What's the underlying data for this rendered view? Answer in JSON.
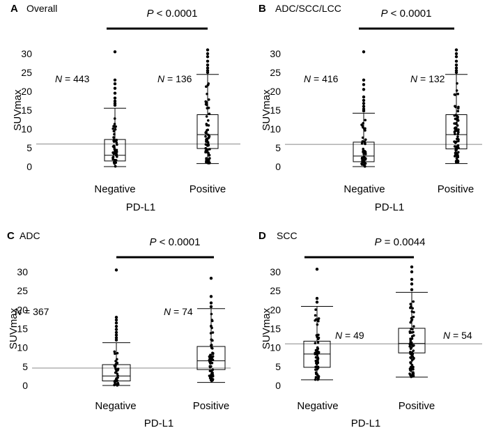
{
  "chart_data": [
    {
      "type": "box",
      "letter": "A",
      "title": "Overall",
      "pvalue": {
        "prefix": "P",
        "text": " < 0.0001"
      },
      "categories": [
        "Negative",
        "Positive"
      ],
      "xlabel": "PD-L1",
      "ylabel": "SUVmax",
      "ylim": [
        0,
        31
      ],
      "yticks": [
        0,
        5,
        10,
        15,
        20,
        25,
        30
      ],
      "cutoff": 6.0,
      "series": [
        {
          "name": "Negative",
          "n_label": "443",
          "whisker_low": 0,
          "q1": 1.5,
          "median": 3.0,
          "q3": 7.2,
          "whisker_high": 15.5,
          "points": [
            16.3,
            16.8,
            17.4,
            18.2,
            19.5,
            20.8,
            22.0,
            23.0,
            30.5
          ]
        },
        {
          "name": "Positive",
          "n_label": "136",
          "whisker_low": 0.8,
          "q1": 4.8,
          "median": 8.5,
          "q3": 13.8,
          "whisker_high": 24.5,
          "points": [
            25.0,
            25.5,
            26.2,
            27.0,
            28.0,
            29.2,
            30.0,
            31.0
          ]
        }
      ]
    },
    {
      "type": "box",
      "letter": "B",
      "title": "ADC/SCC/LCC",
      "pvalue": {
        "prefix": "P",
        "text": " < 0.0001"
      },
      "categories": [
        "Negative",
        "Positive"
      ],
      "xlabel": "PD-L1",
      "ylabel": "SUVmax",
      "ylim": [
        0,
        31
      ],
      "yticks": [
        0,
        5,
        10,
        15,
        20,
        25,
        30
      ],
      "cutoff": 5.9,
      "series": [
        {
          "name": "Negative",
          "n_label": "416",
          "whisker_low": 0,
          "q1": 1.3,
          "median": 2.8,
          "q3": 6.5,
          "whisker_high": 14.2,
          "points": [
            14.8,
            15.3,
            16.0,
            16.8,
            17.6,
            18.5,
            20.5,
            21.8,
            23.0,
            30.5
          ]
        },
        {
          "name": "Positive",
          "n_label": "132",
          "whisker_low": 0.8,
          "q1": 4.7,
          "median": 8.5,
          "q3": 13.8,
          "whisker_high": 24.5,
          "points": [
            25.0,
            25.5,
            26.2,
            27.0,
            28.0,
            29.2,
            30.0,
            31.0
          ]
        }
      ]
    },
    {
      "type": "box",
      "letter": "C",
      "title": "ADC",
      "pvalue": {
        "prefix": "P",
        "text": " < 0.0001"
      },
      "categories": [
        "Negative",
        "Positive"
      ],
      "xlabel": "PD-L1",
      "ylabel": "SUVmax",
      "ylim": [
        0,
        31
      ],
      "yticks": [
        0,
        5,
        10,
        15,
        20,
        25,
        30
      ],
      "cutoff": 4.6,
      "series": [
        {
          "name": "Negative",
          "n_label": "367",
          "whisker_low": 0,
          "q1": 1.2,
          "median": 2.5,
          "q3": 5.5,
          "whisker_high": 11.3,
          "points": [
            12.0,
            12.6,
            13.3,
            14.0,
            14.8,
            15.6,
            16.5,
            17.3,
            18.0,
            30.5
          ]
        },
        {
          "name": "Positive",
          "n_label": "74",
          "whisker_low": 0.8,
          "q1": 4.2,
          "median": 6.5,
          "q3": 10.3,
          "whisker_high": 20.3,
          "points": [
            20.8,
            21.8,
            23.5,
            28.3
          ]
        }
      ]
    },
    {
      "type": "box",
      "letter": "D",
      "title": "SCC",
      "pvalue": {
        "prefix": "P",
        "text": " = 0.0044"
      },
      "categories": [
        "Negative",
        "Positive"
      ],
      "xlabel": "PD-L1",
      "ylabel": "SUVmax",
      "ylim": [
        0,
        31
      ],
      "yticks": [
        0,
        5,
        10,
        15,
        20,
        25,
        30
      ],
      "cutoff": 11.0,
      "series": [
        {
          "name": "Negative",
          "n_label": "49",
          "whisker_low": 1.5,
          "q1": 4.8,
          "median": 8.3,
          "q3": 11.7,
          "whisker_high": 20.9,
          "points": [
            22.0,
            23.0,
            30.7
          ]
        },
        {
          "name": "Positive",
          "n_label": "54",
          "whisker_low": 2.2,
          "q1": 8.6,
          "median": 11.1,
          "q3": 15.1,
          "whisker_high": 24.6,
          "points": [
            25.3,
            26.8,
            28.0,
            30.0,
            31.3
          ]
        }
      ]
    }
  ]
}
